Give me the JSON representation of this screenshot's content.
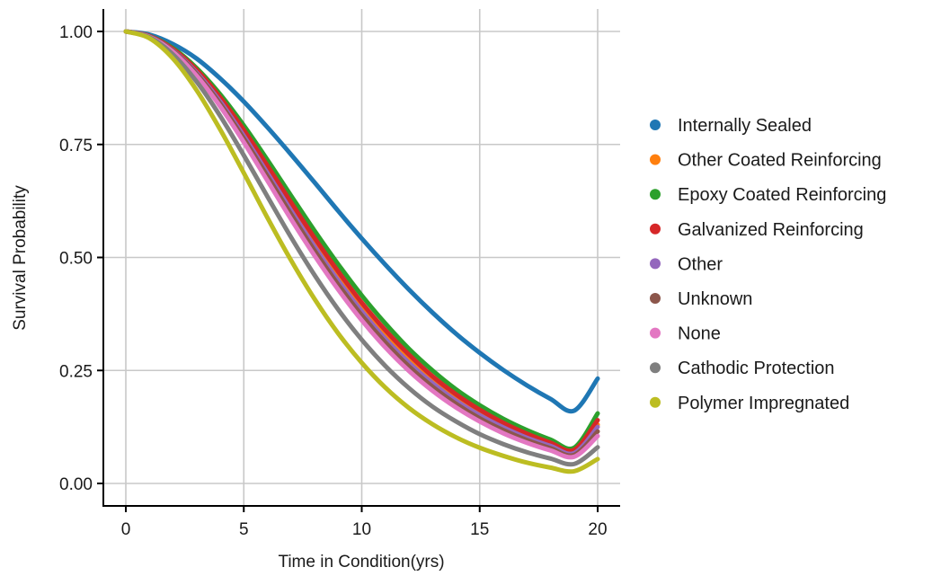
{
  "chart_data": {
    "type": "line",
    "title": "",
    "xlabel": "Time in Condition(yrs)",
    "ylabel": "Survival Probability",
    "xlim": [
      -1,
      21
    ],
    "ylim": [
      -0.05,
      1.05
    ],
    "xticks": [
      0,
      5,
      10,
      15,
      20
    ],
    "xtick_labels": [
      "0",
      "5",
      "10",
      "15",
      "20"
    ],
    "yticks": [
      0,
      0.25,
      0.5,
      0.75,
      1.0
    ],
    "ytick_labels": [
      "0.00",
      "0.25",
      "0.50",
      "0.75",
      "1.00"
    ],
    "grid": true,
    "legend_position": "right",
    "x": [
      0,
      1,
      2,
      3,
      4,
      5,
      6,
      7,
      8,
      9,
      10,
      11,
      12,
      13,
      14,
      15,
      16,
      17,
      18,
      19,
      20
    ],
    "series": [
      {
        "name": "Internally Sealed",
        "color": "#1f77b4",
        "values": [
          1.0,
          0.993,
          0.972,
          0.94,
          0.896,
          0.845,
          0.788,
          0.728,
          0.666,
          0.603,
          0.542,
          0.484,
          0.429,
          0.378,
          0.331,
          0.289,
          0.251,
          0.217,
          0.187,
          0.161,
          0.232
        ]
      },
      {
        "name": "Other Coated Reinforcing",
        "color": "#ff7f0e",
        "values": [
          1.0,
          0.99,
          0.96,
          0.912,
          0.849,
          0.776,
          0.696,
          0.614,
          0.535,
          0.461,
          0.392,
          0.332,
          0.278,
          0.232,
          0.193,
          0.16,
          0.132,
          0.109,
          0.09,
          0.074,
          0.13
        ]
      },
      {
        "name": "Epoxy Coated Reinforcing",
        "color": "#2ca02c",
        "values": [
          1.0,
          0.99,
          0.963,
          0.919,
          0.861,
          0.792,
          0.716,
          0.637,
          0.559,
          0.485,
          0.416,
          0.354,
          0.298,
          0.25,
          0.208,
          0.173,
          0.143,
          0.118,
          0.097,
          0.079,
          0.155
        ]
      },
      {
        "name": "Galvanized Reinforcing",
        "color": "#d62728",
        "values": [
          1.0,
          0.99,
          0.961,
          0.915,
          0.854,
          0.782,
          0.703,
          0.622,
          0.543,
          0.469,
          0.4,
          0.339,
          0.285,
          0.237,
          0.197,
          0.163,
          0.134,
          0.11,
          0.09,
          0.074,
          0.14
        ]
      },
      {
        "name": "Other",
        "color": "#9467bd",
        "values": [
          1.0,
          0.989,
          0.958,
          0.909,
          0.845,
          0.769,
          0.687,
          0.604,
          0.524,
          0.449,
          0.381,
          0.32,
          0.267,
          0.222,
          0.183,
          0.151,
          0.124,
          0.101,
          0.083,
          0.067,
          0.125
        ]
      },
      {
        "name": "Unknown",
        "color": "#8c564b",
        "values": [
          1.0,
          0.989,
          0.957,
          0.906,
          0.84,
          0.763,
          0.68,
          0.596,
          0.515,
          0.44,
          0.372,
          0.312,
          0.259,
          0.214,
          0.176,
          0.144,
          0.118,
          0.096,
          0.078,
          0.063,
          0.115
        ]
      },
      {
        "name": "None",
        "color": "#e377c2",
        "values": [
          1.0,
          0.988,
          0.955,
          0.902,
          0.834,
          0.755,
          0.67,
          0.585,
          0.504,
          0.429,
          0.361,
          0.301,
          0.249,
          0.205,
          0.168,
          0.137,
          0.111,
          0.09,
          0.073,
          0.059,
          0.105
        ]
      },
      {
        "name": "Cathodic Protection",
        "color": "#7f7f7f",
        "values": [
          1.0,
          0.987,
          0.949,
          0.889,
          0.813,
          0.726,
          0.635,
          0.545,
          0.461,
          0.385,
          0.318,
          0.26,
          0.211,
          0.17,
          0.137,
          0.109,
          0.087,
          0.069,
          0.055,
          0.043,
          0.08
        ]
      },
      {
        "name": "Polymer Impregnated",
        "color": "#bcbd22",
        "values": [
          1.0,
          0.985,
          0.94,
          0.87,
          0.783,
          0.687,
          0.588,
          0.494,
          0.408,
          0.332,
          0.267,
          0.212,
          0.167,
          0.131,
          0.102,
          0.079,
          0.061,
          0.046,
          0.035,
          0.027,
          0.054
        ]
      }
    ]
  }
}
